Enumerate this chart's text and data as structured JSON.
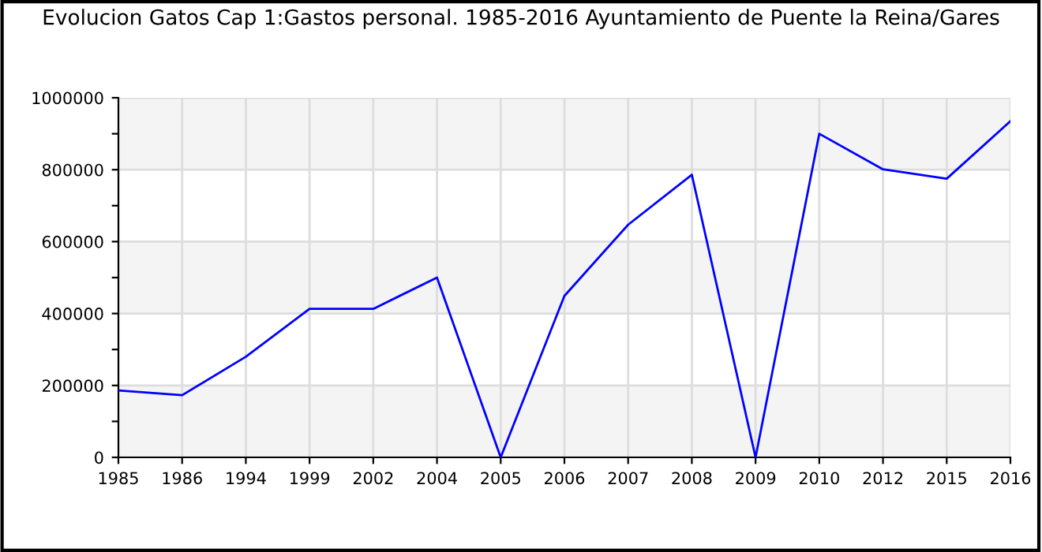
{
  "chart_data": {
    "type": "line",
    "title": "Evolucion Gatos Cap 1:Gastos personal. 1985-2016 Ayuntamiento de Puente la Reina/Gares",
    "categories": [
      "1985",
      "1986",
      "1994",
      "1999",
      "2002",
      "2004",
      "2005",
      "2006",
      "2007",
      "2008",
      "2009",
      "2010",
      "2012",
      "2015",
      "2016"
    ],
    "series": [
      {
        "color": "#0000ff",
        "values": [
          186000,
          173000,
          280000,
          413000,
          413000,
          500000,
          0,
          449000,
          647000,
          786000,
          0,
          900000,
          801000,
          775000,
          935000
        ]
      }
    ],
    "ylim": [
      0,
      1000000
    ],
    "yticks": [
      0,
      {
        "value": 100000,
        "label": null
      },
      200000,
      {
        "value": 300000,
        "label": null
      },
      400000,
      {
        "value": 500000,
        "label": null
      },
      600000,
      {
        "value": 700000,
        "label": null
      },
      800000,
      {
        "value": 900000,
        "label": null
      },
      1000000
    ],
    "grid": true,
    "marker": "none",
    "line_style": "solid"
  }
}
